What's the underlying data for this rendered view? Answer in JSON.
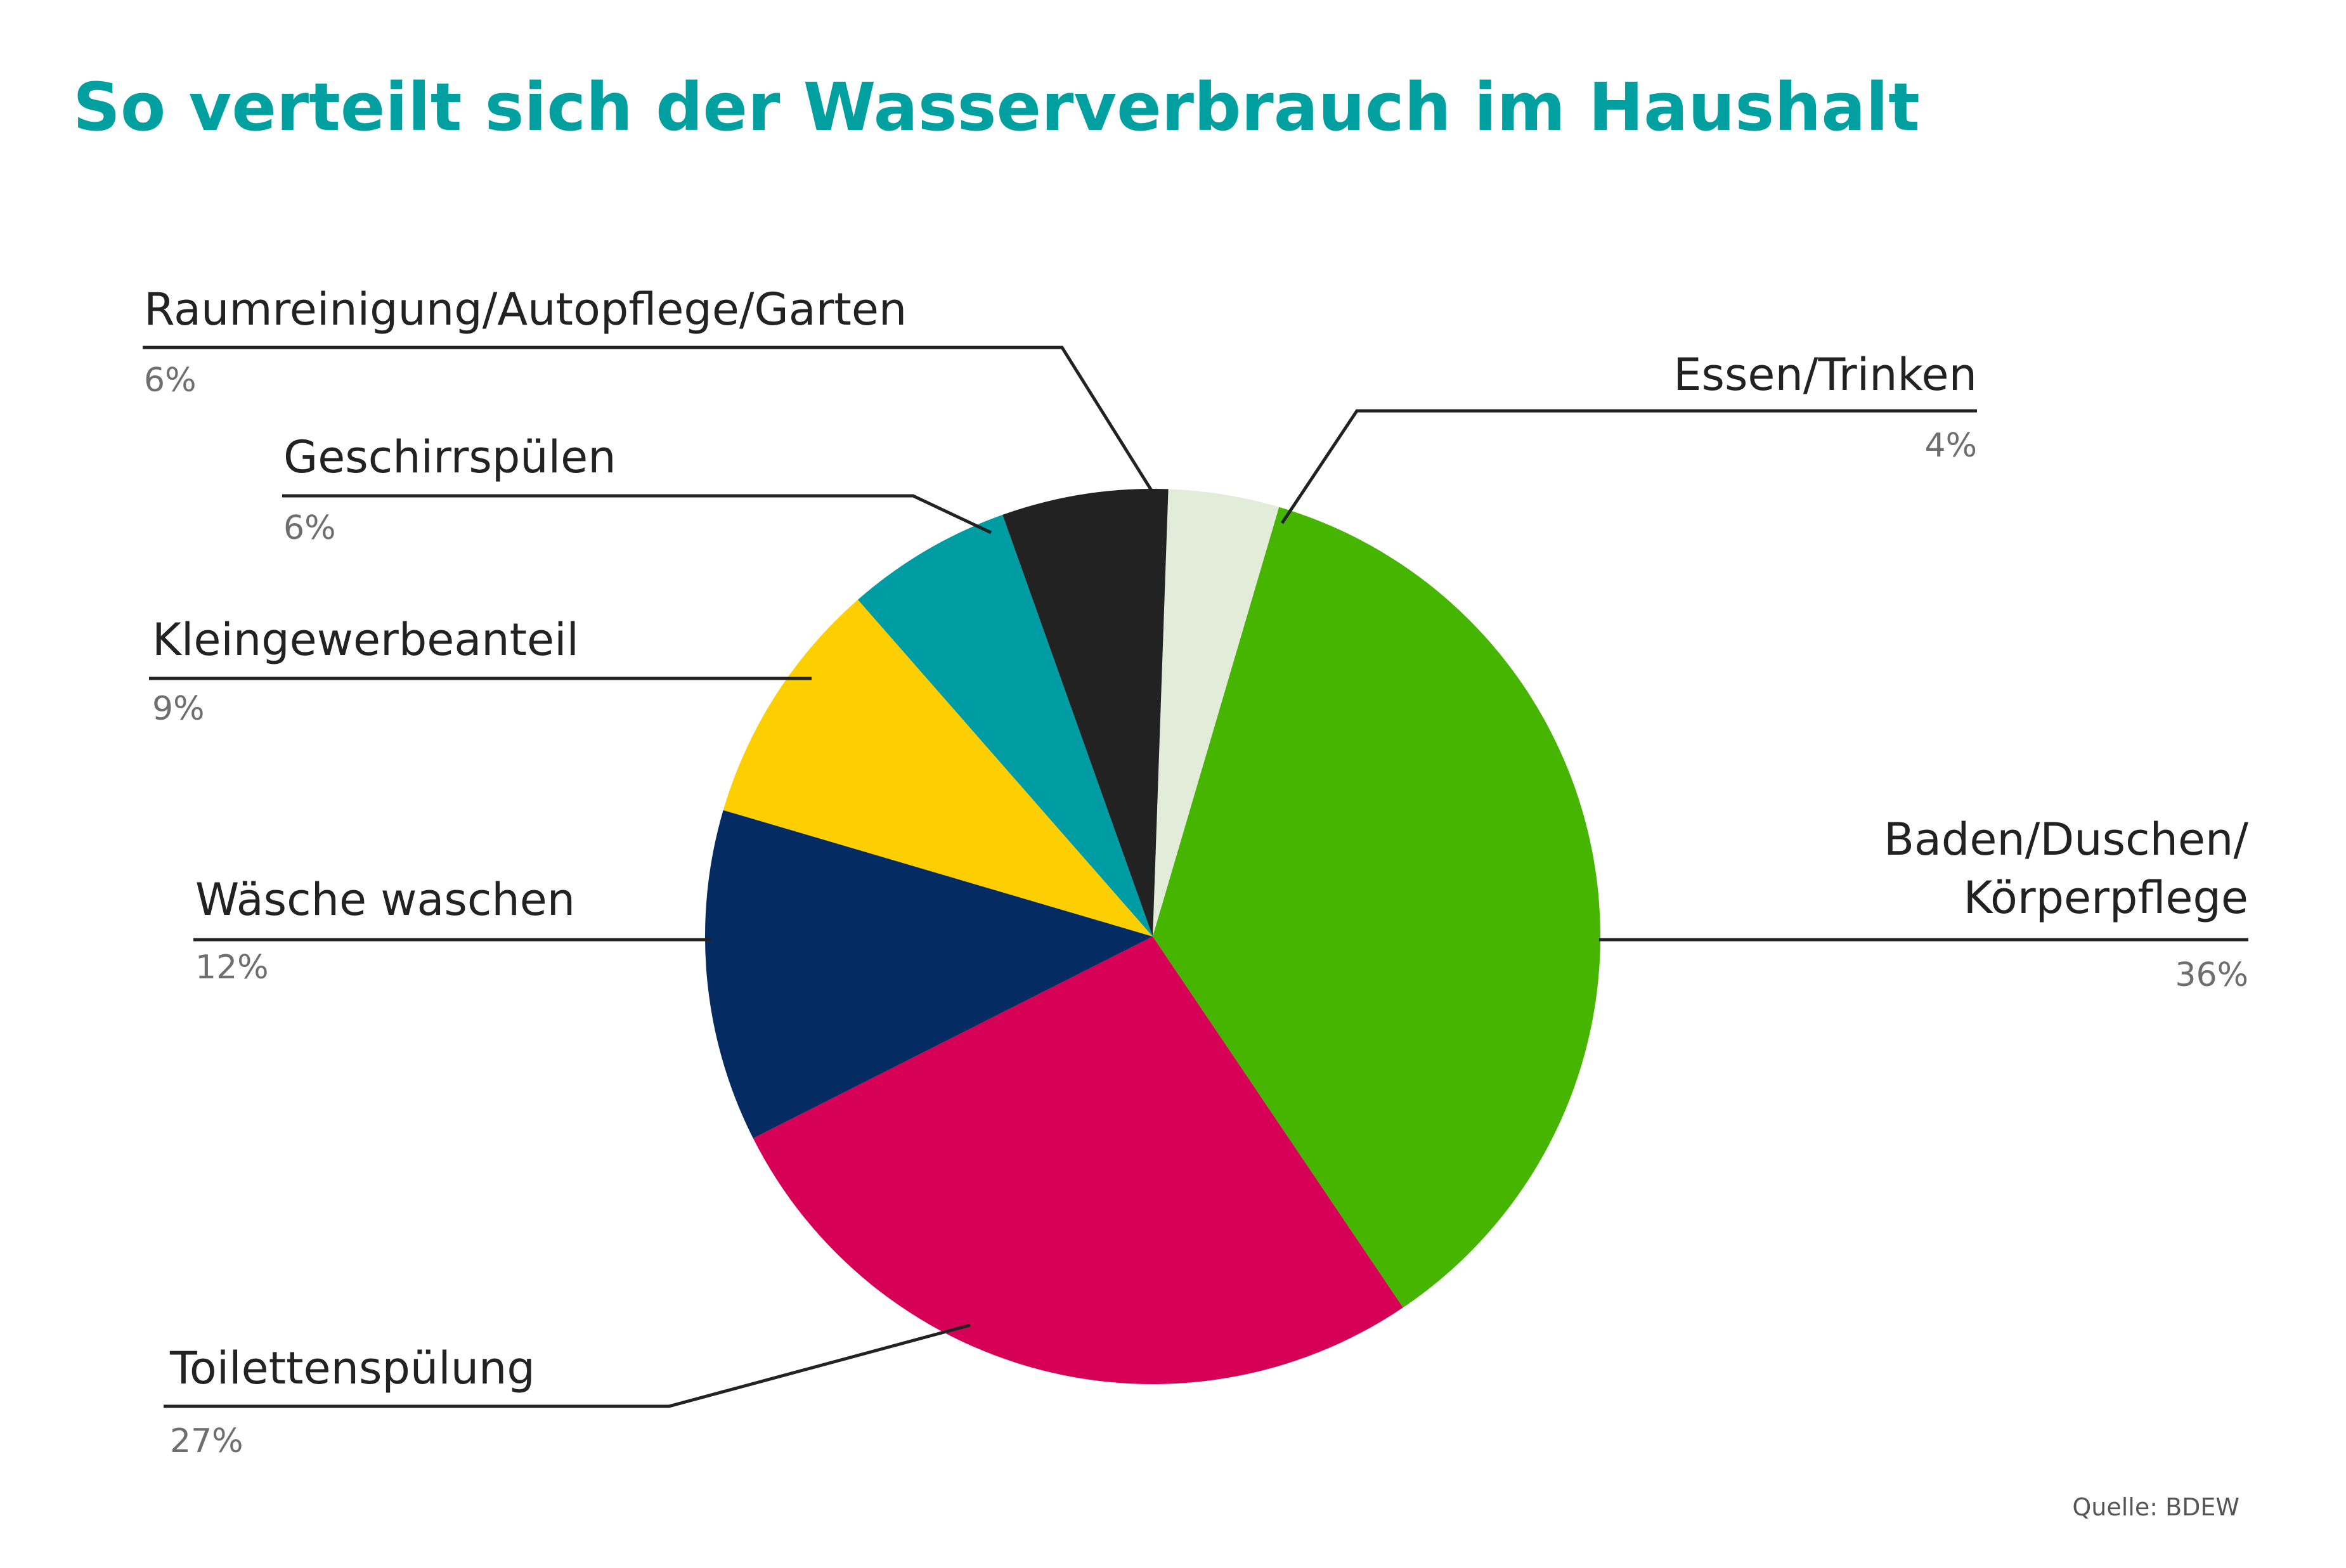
{
  "title": "So verteilt sich der Wasserverbrauch im Haushalt",
  "source": "Quelle: BDEW",
  "chart_data": {
    "type": "pie",
    "title": "So verteilt sich der Wasserverbrauch im Haushalt",
    "slices": [
      {
        "label": "Essen/Trinken",
        "value": 4,
        "display": "4%",
        "color": "#e2ecd8"
      },
      {
        "label": "Baden/Duschen/ Körperpflege",
        "lines": [
          "Baden/Duschen/",
          "Körperpflege"
        ],
        "value": 36,
        "display": "36%",
        "color": "#45b500"
      },
      {
        "label": "Toilettenspülung",
        "value": 27,
        "display": "27%",
        "color": "#d70057"
      },
      {
        "label": "Wäsche waschen",
        "value": 12,
        "display": "12%",
        "color": "#052c62"
      },
      {
        "label": "Kleingewerbeanteil",
        "value": 9,
        "display": "9%",
        "color": "#fdcf00"
      },
      {
        "label": "Geschirrspülen",
        "value": 6,
        "display": "6%",
        "color": "#009ca3"
      },
      {
        "label": "Raumreinigung/Autopflege/Garten",
        "value": 6,
        "display": "6%",
        "color": "#222222"
      }
    ]
  }
}
